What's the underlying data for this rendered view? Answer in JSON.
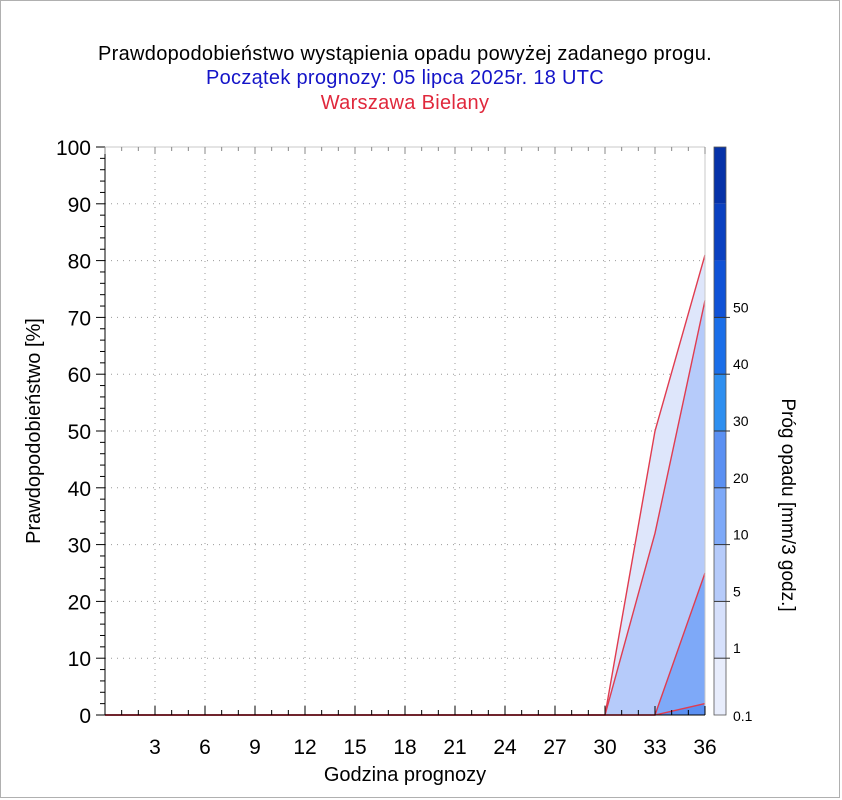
{
  "colors": {
    "title": "#000000",
    "subtitle": "#1414c8",
    "station": "#e0283c",
    "series_line": "#e03c50",
    "grid": "#9a9a9a"
  },
  "chart_data": {
    "type": "area",
    "title": "Prawdopodobieństwo wystąpienia opadu powyżej zadanego progu.",
    "subtitle": "Początek prognozy: 05 lipca 2025r. 18 UTC",
    "station": "Warszawa Bielany",
    "xlabel": "Godzina prognozy",
    "ylabel": "Prawdopodobieństwo [%]",
    "xlim": [
      0,
      36
    ],
    "ylim": [
      0,
      100
    ],
    "xticks": [
      3,
      6,
      9,
      12,
      15,
      18,
      21,
      24,
      27,
      30,
      33,
      36
    ],
    "yticks": [
      0,
      10,
      20,
      30,
      40,
      50,
      60,
      70,
      80,
      90,
      100
    ],
    "grid": true,
    "x": [
      3,
      6,
      9,
      12,
      15,
      18,
      21,
      24,
      27,
      30,
      33,
      36
    ],
    "series": [
      {
        "threshold": "0.1",
        "color": "#dee6fb",
        "values": [
          0,
          0,
          0,
          0,
          0,
          0,
          0,
          0,
          0,
          0,
          50,
          81
        ]
      },
      {
        "threshold": "1",
        "color": "#b6cbfa",
        "values": [
          0,
          0,
          0,
          0,
          0,
          0,
          0,
          0,
          0,
          0,
          32,
          73
        ]
      },
      {
        "threshold": "5",
        "color": "#7ea9f8",
        "values": [
          0,
          0,
          0,
          0,
          0,
          0,
          0,
          0,
          0,
          0,
          0,
          25
        ]
      },
      {
        "threshold": "10",
        "color": "#5b90f2",
        "values": [
          0,
          0,
          0,
          0,
          0,
          0,
          0,
          0,
          0,
          0,
          0,
          2
        ]
      }
    ],
    "colorbar": {
      "label": "Próg opadu [mm/3 godz.]",
      "labels": [
        "0.1",
        "1",
        "5",
        "10",
        "20",
        "30",
        "40",
        "50"
      ],
      "colors": [
        "#e8edfc",
        "#d6e0fb",
        "#b6cbfa",
        "#7ea9f8",
        "#5b90f2",
        "#2e8ff0",
        "#1a6ee8",
        "#1052d6",
        "#0a40c0",
        "#0632a8"
      ]
    }
  }
}
